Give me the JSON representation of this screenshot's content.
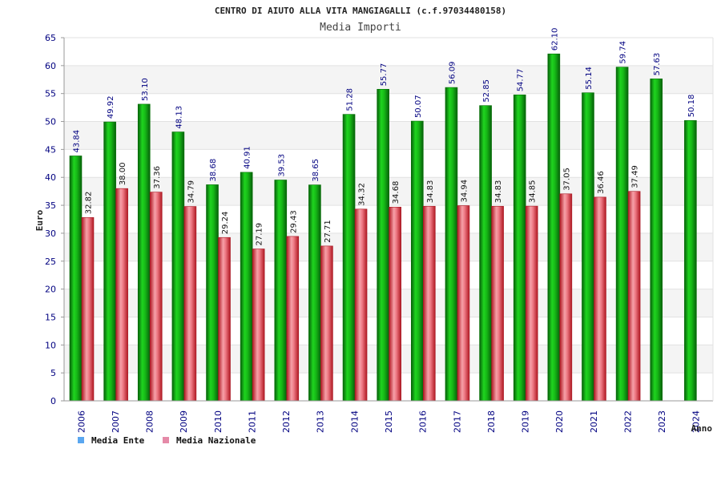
{
  "chart_data": {
    "type": "bar",
    "title": "CENTRO DI AIUTO ALLA VITA MANGIAGALLI (c.f.97034480158)",
    "subtitle": "Media Importi",
    "xlabel": "Anno",
    "ylabel": "Euro",
    "ylim": [
      0,
      65
    ],
    "yticks": [
      0,
      5,
      10,
      15,
      20,
      25,
      30,
      35,
      40,
      45,
      50,
      55,
      60,
      65
    ],
    "grid": true,
    "categories": [
      "2006",
      "2007",
      "2008",
      "2009",
      "2010",
      "2011",
      "2012",
      "2013",
      "2014",
      "2015",
      "2016",
      "2017",
      "2018",
      "2019",
      "2020",
      "2021",
      "2022",
      "2023",
      "2024"
    ],
    "series": [
      {
        "name": "Media Ente",
        "color": "#0db20d",
        "label_color": "#000080",
        "legend_color": "#5aa7f0",
        "values": [
          43.84,
          49.92,
          53.1,
          48.13,
          38.68,
          40.91,
          39.53,
          38.65,
          51.28,
          55.77,
          50.07,
          56.09,
          52.85,
          54.77,
          62.1,
          55.14,
          59.74,
          57.63,
          50.18
        ],
        "labels": [
          "43.84",
          "49.92",
          "53.10",
          "48.13",
          "38.68",
          "40.91",
          "39.53",
          "38.65",
          "51.28",
          "55.77",
          "50.07",
          "56.09",
          "52.85",
          "54.77",
          "62.10",
          "55.14",
          "59.74",
          "57.63",
          "50.18"
        ]
      },
      {
        "name": "Media Nazionale",
        "color": "#e0303a",
        "label_color": "#111111",
        "legend_color": "#e58aa8",
        "values": [
          32.82,
          38.0,
          37.36,
          34.79,
          29.24,
          27.19,
          29.43,
          27.71,
          34.32,
          34.68,
          34.83,
          34.94,
          34.83,
          34.85,
          37.05,
          36.46,
          37.49,
          null,
          null
        ],
        "labels": [
          "32.82",
          "38.00",
          "37.36",
          "34.79",
          "29.24",
          "27.19",
          "29.43",
          "27.71",
          "34.32",
          "34.68",
          "34.83",
          "34.94",
          "34.83",
          "34.85",
          "37.05",
          "36.46",
          "37.49",
          null,
          null
        ]
      }
    ],
    "legend": "bottom-left"
  }
}
